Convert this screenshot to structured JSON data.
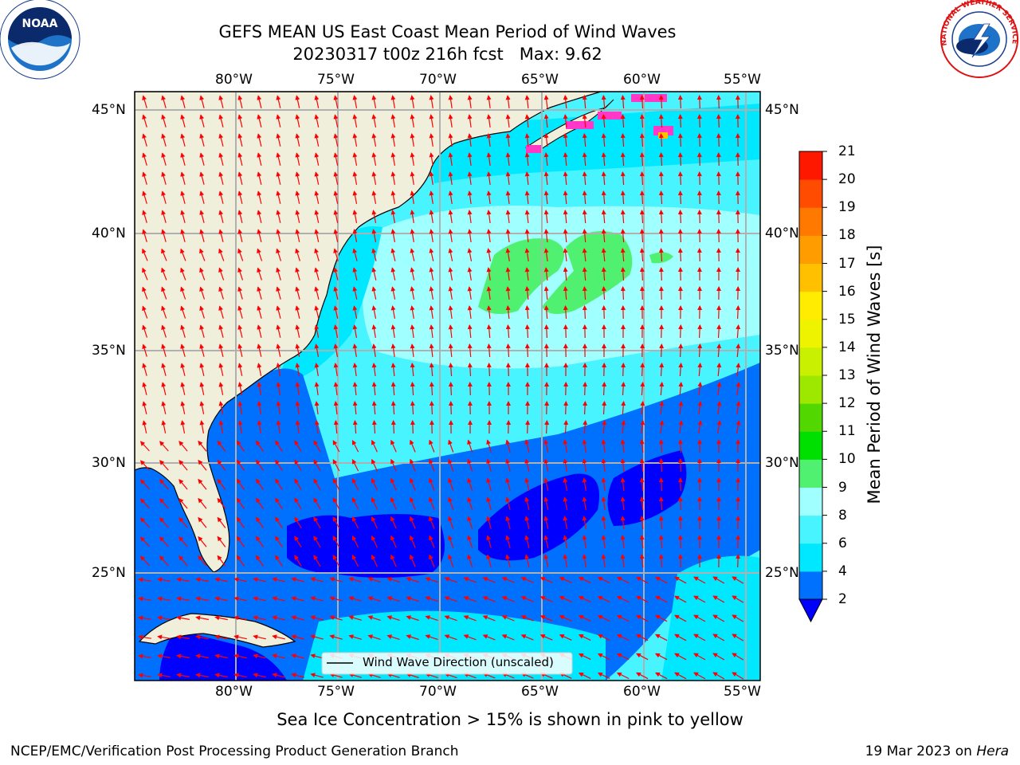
{
  "title": {
    "line1": "GEFS MEAN US East Coast Mean Period of Wind Waves",
    "line2_run": "20230317 t00z 216h fcst",
    "line2_max": "Max: 9.62"
  },
  "map": {
    "lon_labels": [
      "80°W",
      "75°W",
      "70°W",
      "65°W",
      "60°W",
      "55°W"
    ],
    "lat_labels": [
      "45°N",
      "40°N",
      "35°N",
      "30°N",
      "25°N"
    ],
    "legend_label": "Wind Wave Direction (unscaled)",
    "extent": {
      "lon": [
        -85,
        -54.5
      ],
      "lat": [
        20.5,
        46
      ]
    },
    "gridlines": true,
    "colors": {
      "land": "#efefdc",
      "coast": "#000000",
      "grid": "#b0b0b0",
      "arrows": "#ff0000"
    }
  },
  "colorbar": {
    "label": "Mean Period of Wind Waves [s]",
    "ticks": [
      "2",
      "4",
      "6",
      "8",
      "9",
      "10",
      "11",
      "12",
      "13",
      "14",
      "15",
      "16",
      "17",
      "18",
      "19",
      "20",
      "21"
    ],
    "levels": [
      2,
      4,
      6,
      8,
      9,
      10,
      11,
      12,
      13,
      14,
      15,
      16,
      17,
      18,
      19,
      20,
      21
    ],
    "colors": [
      "#0070ff",
      "#00e8ff",
      "#48f4ff",
      "#a0ffff",
      "#50f070",
      "#00e000",
      "#52d800",
      "#9ee800",
      "#c8f000",
      "#eef400",
      "#ffec00",
      "#ffc000",
      "#ff9c00",
      "#ff7800",
      "#ff4c00",
      "#ff1800"
    ],
    "under_color": "#0000ff",
    "extend": "min"
  },
  "footer": {
    "ice_note": "Sea Ice Concentration > 15% is shown in pink to yellow",
    "org": "NCEP/EMC/Verification Post Processing Product Generation Branch",
    "date": "19 Mar 2023 on ",
    "host": "Hera"
  },
  "logos": {
    "left": {
      "name": "noaa-logo",
      "text": "NOAA"
    },
    "right": {
      "name": "nws-logo",
      "text": "NATIONAL WEATHER SERVICE"
    }
  }
}
